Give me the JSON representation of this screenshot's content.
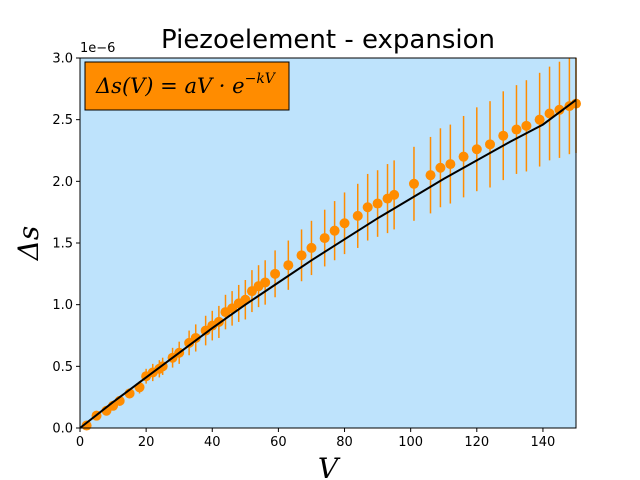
{
  "chart_data": {
    "type": "scatter",
    "title": "Piezoelement - expansion",
    "xlabel": "V",
    "ylabel": "Δs",
    "y_multiplier_label": "1e−6",
    "xlim": [
      0,
      150
    ],
    "ylim": [
      0,
      3.0
    ],
    "x_ticks": [
      0,
      20,
      40,
      60,
      80,
      100,
      120,
      140
    ],
    "y_ticks": [
      0.0,
      0.5,
      1.0,
      1.5,
      2.0,
      2.5,
      3.0
    ],
    "x_tick_labels": [
      "0",
      "20",
      "40",
      "60",
      "80",
      "100",
      "120",
      "140"
    ],
    "y_tick_labels": [
      "0.0",
      "0.5",
      "1.0",
      "1.5",
      "2.0",
      "2.5",
      "3.0"
    ],
    "grid": false,
    "legend_placement": "top-left",
    "legend": {
      "lhs": "Δs(V) = aV · e",
      "exponent": "−kV"
    },
    "colors": {
      "plot_background": "#bee3fc",
      "points": "#ff8c00",
      "error_bars": "#ff8c00",
      "fit_line": "#000000",
      "legend_box": "#ff8c00"
    },
    "series": [
      {
        "kind": "measurements",
        "x": [
          2,
          5,
          8,
          10,
          12,
          15,
          18,
          20,
          22,
          24,
          25,
          28,
          30,
          33,
          35,
          38,
          40,
          42,
          44,
          46,
          48,
          50,
          52,
          54,
          56,
          59,
          63,
          67,
          70,
          74,
          77,
          80,
          84,
          87,
          90,
          93,
          95,
          101,
          106,
          109,
          112,
          116,
          120,
          124,
          128,
          132,
          135,
          139,
          142,
          145,
          148,
          150
        ],
        "y": [
          0.02,
          0.1,
          0.14,
          0.18,
          0.22,
          0.28,
          0.33,
          0.42,
          0.45,
          0.48,
          0.5,
          0.57,
          0.61,
          0.69,
          0.73,
          0.79,
          0.83,
          0.86,
          0.94,
          0.97,
          1.01,
          1.04,
          1.11,
          1.15,
          1.18,
          1.25,
          1.32,
          1.4,
          1.46,
          1.54,
          1.6,
          1.66,
          1.72,
          1.79,
          1.82,
          1.86,
          1.89,
          1.98,
          2.05,
          2.11,
          2.14,
          2.2,
          2.26,
          2.3,
          2.37,
          2.42,
          2.45,
          2.5,
          2.55,
          2.58,
          2.61,
          2.63
        ],
        "y_error": [
          0.01,
          0.02,
          0.03,
          0.03,
          0.04,
          0.04,
          0.05,
          0.06,
          0.07,
          0.07,
          0.07,
          0.08,
          0.09,
          0.1,
          0.11,
          0.12,
          0.12,
          0.13,
          0.14,
          0.14,
          0.15,
          0.16,
          0.17,
          0.17,
          0.18,
          0.19,
          0.2,
          0.21,
          0.22,
          0.23,
          0.24,
          0.25,
          0.26,
          0.27,
          0.27,
          0.28,
          0.28,
          0.3,
          0.31,
          0.32,
          0.32,
          0.33,
          0.34,
          0.35,
          0.36,
          0.36,
          0.37,
          0.38,
          0.38,
          0.39,
          0.39,
          0.4
        ]
      },
      {
        "kind": "fit",
        "x": [
          0,
          10,
          20,
          30,
          40,
          50,
          60,
          70,
          80,
          90,
          100,
          110,
          120,
          130,
          140,
          150
        ],
        "y": [
          0.0,
          0.21,
          0.41,
          0.61,
          0.81,
          1.0,
          1.18,
          1.36,
          1.53,
          1.7,
          1.86,
          2.02,
          2.17,
          2.32,
          2.46,
          2.66
        ]
      }
    ]
  }
}
